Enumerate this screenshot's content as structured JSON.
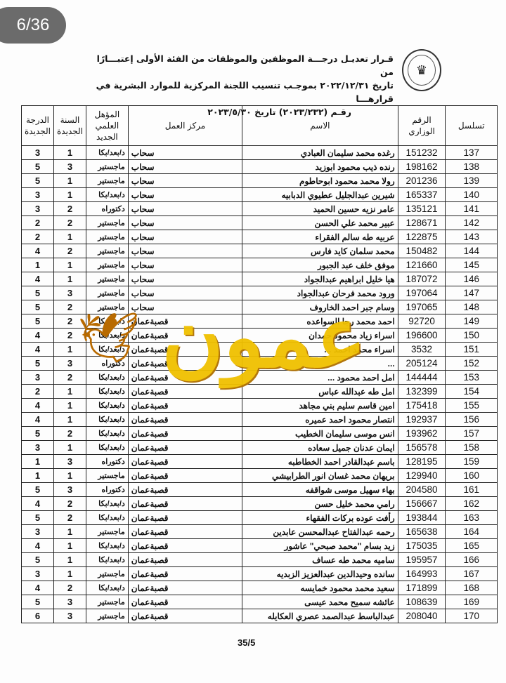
{
  "page_indicator": "6/36",
  "header": {
    "title_lines": [
      "قـرار تعديـل درجـــة الموظفين والموظفات من الفئة الأولى إعتبـــارًا من",
      "تاريخ ٢٠٢٢/١٢/٣١ بموجـب تنسيب اللجنة المركزية للموارد البشرية في قرارهـــا",
      "رقـم (٢٠٢٣/٢٣٢) تاريخ ٢٠٢٣/٥/٣٠"
    ],
    "logo": "emblem-seal"
  },
  "table": {
    "columns": [
      "تسلسل",
      "الرقم الوزاري",
      "الاسم",
      "مركز العمل",
      "المؤهل العلمي الجديد",
      "السنة الجديدة",
      "الدرجة الجديدة"
    ],
    "rows": [
      [
        "137",
        "151232",
        "رغده محمد سليمان العبادي",
        "سحاب",
        "د/بعد/بكا",
        "1",
        "3"
      ],
      [
        "138",
        "198162",
        "رنده ذيب محمود ابوزيد",
        "سحاب",
        "ماجستير",
        "3",
        "5"
      ],
      [
        "139",
        "201236",
        "رولا محمد محمود ابوحاطوم",
        "سحاب",
        "ماجستير",
        "1",
        "5"
      ],
      [
        "140",
        "165337",
        "شيرين عبدالجليل عطيوي الدبابيه",
        "سحاب",
        "د/بعد/بكا",
        "1",
        "3"
      ],
      [
        "141",
        "135121",
        "عامر نزيه حسين الحميد",
        "سحاب",
        "دكتوراه",
        "2",
        "3"
      ],
      [
        "142",
        "128671",
        "عبير محمد علي الحسن",
        "سحاب",
        "ماجستير",
        "2",
        "2"
      ],
      [
        "143",
        "122875",
        "عربيه طه سالم الفقراء",
        "سحاب",
        "ماجستير",
        "1",
        "2"
      ],
      [
        "144",
        "150482",
        "محمد سلمان كايد فارس",
        "سحاب",
        "ماجستير",
        "2",
        "4"
      ],
      [
        "145",
        "121660",
        "موفق خلف عبد الجبور",
        "سحاب",
        "ماجستير",
        "1",
        "1"
      ],
      [
        "146",
        "187072",
        "هيا خليل ابراهيم عبدالجواد",
        "سحاب",
        "ماجستير",
        "1",
        "4"
      ],
      [
        "147",
        "197064",
        "ورود محمد فرحان عبدالجواد",
        "سحاب",
        "ماجستير",
        "3",
        "5"
      ],
      [
        "148",
        "197065",
        "وسام جبر احمد الخاروف",
        "سحاب",
        "ماجستير",
        "2",
        "5"
      ],
      [
        "149",
        "92720",
        "احمد محمد رجا السواعده",
        "قصبةعمان",
        "د/بعد/بكا",
        "2",
        "5"
      ],
      [
        "150",
        "196600",
        "اسراء زياد محمود حمدان",
        "قصبةعمان",
        "د/بعد/بكا",
        "2",
        "4"
      ],
      [
        "151",
        "3532",
        "اسراء محمد احمد ...",
        "قصبةعمان",
        "د/بعد/بكا",
        "1",
        "4"
      ],
      [
        "152",
        "205124",
        "...",
        "قصبةعمان",
        "دكتوراه",
        "3",
        "5"
      ],
      [
        "153",
        "144444",
        "امل احمد محمود ...",
        "قصبةعمان",
        "د/بعد/بكا",
        "2",
        "3"
      ],
      [
        "154",
        "132399",
        "امل طه عبدالله عباس",
        "قصبةعمان",
        "د/بعد/بكا",
        "1",
        "2"
      ],
      [
        "155",
        "175418",
        "امين قاسم سليم بني مجاهد",
        "قصبةعمان",
        "د/بعد/بكا",
        "1",
        "4"
      ],
      [
        "156",
        "192937",
        "انتصار محمود احمد عميره",
        "قصبةعمان",
        "د/بعد/بكا",
        "1",
        "4"
      ],
      [
        "157",
        "193962",
        "انس موسى سليمان الخطيب",
        "قصبةعمان",
        "د/بعد/بكا",
        "2",
        "5"
      ],
      [
        "158",
        "156578",
        "ايمان عدنان جميل سعاده",
        "قصبةعمان",
        "د/بعد/بكا",
        "1",
        "3"
      ],
      [
        "159",
        "128195",
        "باسم عبدالقادر احمد الخطاطبه",
        "قصبةعمان",
        "دكتوراه",
        "3",
        "1"
      ],
      [
        "160",
        "129940",
        "بريهان محمد غسان انور الطرابيشي",
        "قصبةعمان",
        "ماجستير",
        "1",
        "1"
      ],
      [
        "161",
        "204580",
        "بهاء سهيل موسى شواقفه",
        "قصبةعمان",
        "دكتوراه",
        "3",
        "5"
      ],
      [
        "162",
        "156667",
        "رامي محمد خليل حسن",
        "قصبةعمان",
        "د/بعد/بكا",
        "2",
        "4"
      ],
      [
        "163",
        "193844",
        "رأفت عوده بركات الفقهاء",
        "قصبةعمان",
        "د/بعد/بكا",
        "2",
        "5"
      ],
      [
        "164",
        "165638",
        "رحمه عبدالفتاح عبدالمحسن عابدين",
        "قصبةعمان",
        "ماجستير",
        "1",
        "3"
      ],
      [
        "165",
        "175035",
        "زيد بسام \"محمد صبحي\" عاشور",
        "قصبةعمان",
        "د/بعد/بكا",
        "1",
        "4"
      ],
      [
        "166",
        "195957",
        "ساميه محمد طه عساف",
        "قصبةعمان",
        "د/بعد/بكا",
        "1",
        "5"
      ],
      [
        "167",
        "164993",
        "سانده وحيدالدين عبدالعزيز الزبديه",
        "قصبةعمان",
        "ماجستير",
        "1",
        "3"
      ],
      [
        "168",
        "171899",
        "سعيد محمد محمود خمايسه",
        "قصبةعمان",
        "د/بعد/بكا",
        "2",
        "4"
      ],
      [
        "169",
        "108639",
        "عائشه سميح محمد عيسى",
        "قصبةعمان",
        "ماجستير",
        "3",
        "5"
      ],
      [
        "170",
        "208040",
        "عبدالباسط عبدالصمد عصري العكايله",
        "قصبةعمان",
        "ماجستير",
        "3",
        "6"
      ]
    ]
  },
  "footer": {
    "page_number": "35/5"
  },
  "watermark": {
    "text": "عمون",
    "color": "#f0c000"
  }
}
